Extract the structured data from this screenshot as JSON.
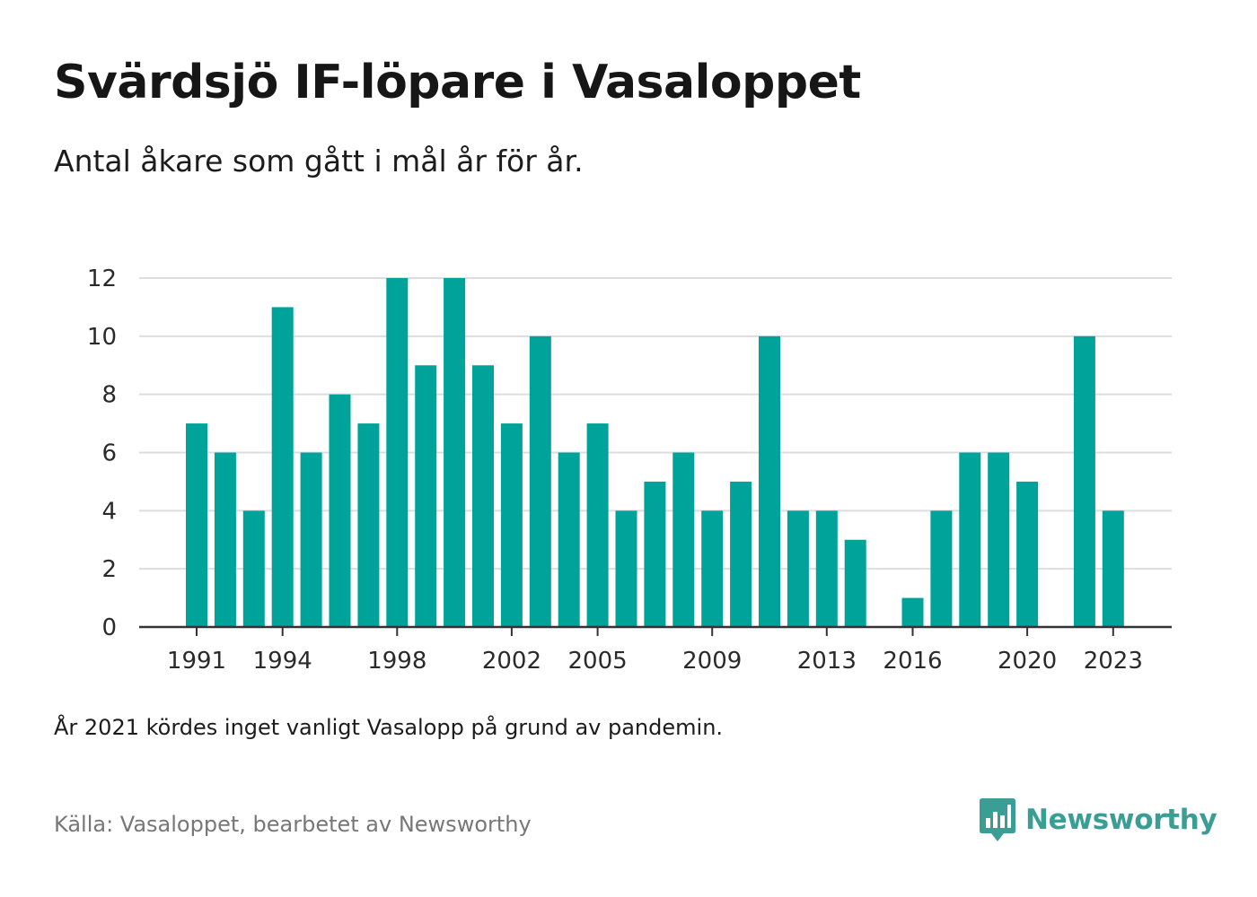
{
  "header": {
    "title": "Svärdsjö IF-löpare i Vasaloppet",
    "subtitle": "Antal åkare som gått i mål år för år."
  },
  "footer": {
    "note": "År 2021 kördes inget vanligt Vasalopp på grund av pandemin.",
    "source": "Källa: Vasaloppet, bearbetet av Newsworthy",
    "brand": "Newsworthy"
  },
  "colors": {
    "bar": "#00a39a",
    "grid": "#dddddd",
    "axis": "#333333",
    "brand": "#3a9e95"
  },
  "icons": {
    "logo": "newsworthy-logo-icon"
  },
  "chart_data": {
    "type": "bar",
    "title": "Svärdsjö IF-löpare i Vasaloppet",
    "subtitle": "Antal åkare som gått i mål år för år.",
    "xlabel": "",
    "ylabel": "",
    "ylim": [
      0,
      12
    ],
    "yticks": [
      0,
      2,
      4,
      6,
      8,
      10,
      12
    ],
    "xticks": [
      1991,
      1994,
      1998,
      2002,
      2005,
      2009,
      2013,
      2016,
      2020,
      2023
    ],
    "grid": true,
    "legend": "none",
    "categories": [
      1991,
      1992,
      1993,
      1994,
      1995,
      1996,
      1997,
      1998,
      1999,
      2000,
      2001,
      2002,
      2003,
      2004,
      2005,
      2006,
      2007,
      2008,
      2009,
      2010,
      2011,
      2012,
      2013,
      2014,
      2015,
      2016,
      2017,
      2018,
      2019,
      2020,
      2021,
      2022,
      2023
    ],
    "values": [
      7,
      6,
      4,
      11,
      6,
      8,
      7,
      12,
      9,
      12,
      9,
      7,
      10,
      6,
      7,
      4,
      5,
      6,
      4,
      5,
      10,
      4,
      4,
      3,
      0,
      1,
      4,
      6,
      6,
      5,
      null,
      10,
      4
    ]
  }
}
